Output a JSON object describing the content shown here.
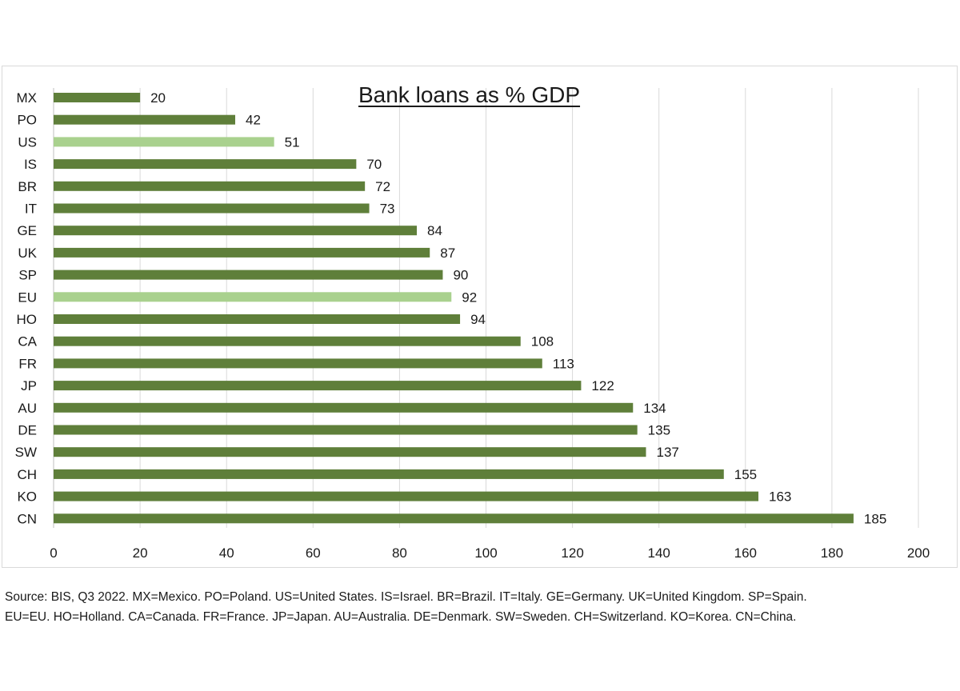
{
  "chart_data": {
    "type": "bar",
    "orientation": "horizontal",
    "title": "Bank loans as % GDP",
    "categories": [
      "MX",
      "PO",
      "US",
      "IS",
      "BR",
      "IT",
      "GE",
      "UK",
      "SP",
      "EU",
      "HO",
      "CA",
      "FR",
      "JP",
      "AU",
      "DE",
      "SW",
      "CH",
      "KO",
      "CN"
    ],
    "values": [
      20,
      42,
      51,
      70,
      72,
      73,
      84,
      87,
      90,
      92,
      94,
      108,
      113,
      122,
      134,
      135,
      137,
      155,
      163,
      185
    ],
    "highlighted": [
      "US",
      "EU"
    ],
    "xlim": [
      0,
      200
    ],
    "xticks": [
      0,
      20,
      40,
      60,
      80,
      100,
      120,
      140,
      160,
      180,
      200
    ],
    "grid": "vertical",
    "colors": {
      "bar": "#5f7f3a",
      "highlight": "#a9d18e",
      "grid": "#d9d9d9",
      "text": "#1a1a1a"
    }
  },
  "footnote": {
    "line1": "Source: BIS, Q3 2022. MX=Mexico. PO=Poland. US=United States. IS=Israel. BR=Brazil. IT=Italy. GE=Germany. UK=United Kingdom. SP=Spain.",
    "line2": "EU=EU. HO=Holland. CA=Canada. FR=France. JP=Japan. AU=Australia. DE=Denmark. SW=Sweden. CH=Switzerland. KO=Korea. CN=China."
  }
}
